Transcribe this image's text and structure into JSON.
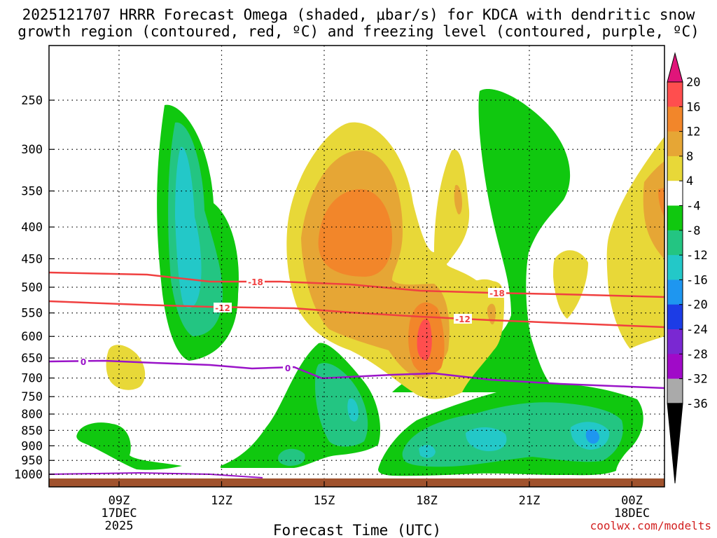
{
  "title": {
    "line1": "2025121707 HRRR Forecast Omega (shaded, μbar/s) for KDCA with dendritic snow",
    "line2": "growth region (contoured, red, ºC) and freezing level (contoured, purple, ºC)"
  },
  "chart_data": {
    "type": "heatmap",
    "title": "2025121707 HRRR Forecast Omega (shaded, μbar/s) for KDCA",
    "xlabel": "Forecast Time (UTC)",
    "ylabel": "",
    "x_ticks": [
      {
        "label": "09Z",
        "sub": [
          "17DEC",
          "2025"
        ]
      },
      {
        "label": "12Z",
        "sub": []
      },
      {
        "label": "15Z",
        "sub": []
      },
      {
        "label": "18Z",
        "sub": []
      },
      {
        "label": "21Z",
        "sub": []
      },
      {
        "label": "00Z",
        "sub": [
          "18DEC"
        ]
      }
    ],
    "y_ticks": [
      250,
      300,
      350,
      400,
      450,
      500,
      550,
      600,
      650,
      700,
      750,
      800,
      850,
      900,
      950,
      1000
    ],
    "ylim": [
      200,
      1000
    ],
    "colorbar": {
      "labels": [
        "20",
        "16",
        "12",
        "8",
        "4",
        "-4",
        "-8",
        "-12",
        "-16",
        "-20",
        "-24",
        "-28",
        "-32",
        "-36"
      ],
      "bands": [
        {
          "from": 16,
          "to": 20,
          "color": "#ff4e4e"
        },
        {
          "from": 12,
          "to": 16,
          "color": "#f2862a"
        },
        {
          "from": 8,
          "to": 12,
          "color": "#e6a635"
        },
        {
          "from": 4,
          "to": 8,
          "color": "#e8d838"
        },
        {
          "from": -4,
          "to": 4,
          "color": "#ffffff"
        },
        {
          "from": -8,
          "to": -4,
          "color": "#10c80f"
        },
        {
          "from": -12,
          "to": -8,
          "color": "#23c582"
        },
        {
          "from": -16,
          "to": -12,
          "color": "#23c8c8"
        },
        {
          "from": -20,
          "to": -16,
          "color": "#1e96f0"
        },
        {
          "from": -24,
          "to": -20,
          "color": "#1c3ce6"
        },
        {
          "from": -28,
          "to": -24,
          "color": "#7a28d2"
        },
        {
          "from": -32,
          "to": -28,
          "color": "#a00ac8"
        },
        {
          "from": -36,
          "to": -32,
          "color": "#aaaaaa"
        }
      ],
      "top_arrow_color": "#e0157a",
      "bottom_arrow_color": "#000000"
    },
    "contours": [
      {
        "name": "dgz-top",
        "label": "-18",
        "color": "#f04040"
      },
      {
        "name": "dgz-bottom",
        "label": "-12",
        "color": "#f04040"
      },
      {
        "name": "freezing-level",
        "label": "0",
        "color": "#9a14c8"
      }
    ]
  },
  "credit": "coolwx.com/modelts",
  "ground_color": "#a0522d"
}
